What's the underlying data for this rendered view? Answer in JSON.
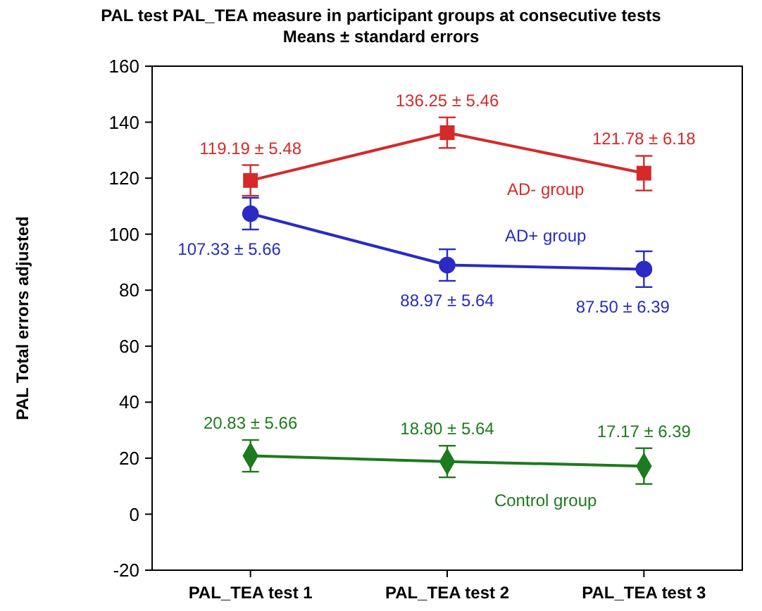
{
  "chart_data": {
    "type": "line",
    "title": "PAL test PAL_TEA measure in participant groups at consecutive tests",
    "subtitle": "Means ± standard errors",
    "ylabel": "PAL  Total errors adjusted",
    "categories": [
      "PAL_TEA test 1",
      "PAL_TEA test 2",
      "PAL_TEA test 3"
    ],
    "ylim": [
      -20,
      160
    ],
    "yticks": [
      -20,
      0,
      20,
      40,
      60,
      80,
      100,
      120,
      140,
      160
    ],
    "grid": false,
    "legend": false,
    "line_style": "solid",
    "series": [
      {
        "name": "AD- group",
        "color": "#d42a2a",
        "marker": "square",
        "values": [
          119.19,
          136.25,
          121.78
        ],
        "errors": [
          5.48,
          5.46,
          6.18
        ],
        "value_labels": [
          "119.19 ± 5.48",
          "136.25 ± 5.46",
          "121.78 ± 6.18"
        ]
      },
      {
        "name": "AD+ group",
        "color": "#2a2ac4",
        "marker": "circle",
        "values": [
          107.33,
          88.97,
          87.5
        ],
        "errors": [
          5.66,
          5.64,
          6.39
        ],
        "value_labels": [
          "107.33 ± 5.66",
          "88.97 ± 5.64",
          "87.50 ± 6.39"
        ]
      },
      {
        "name": "Control group",
        "color": "#1e7a1e",
        "marker": "diamond",
        "values": [
          20.83,
          18.8,
          17.17
        ],
        "errors": [
          5.66,
          5.64,
          6.39
        ],
        "value_labels": [
          "20.83 ± 5.66",
          "18.80 ± 5.64",
          "17.17 ± 6.39"
        ]
      }
    ]
  }
}
